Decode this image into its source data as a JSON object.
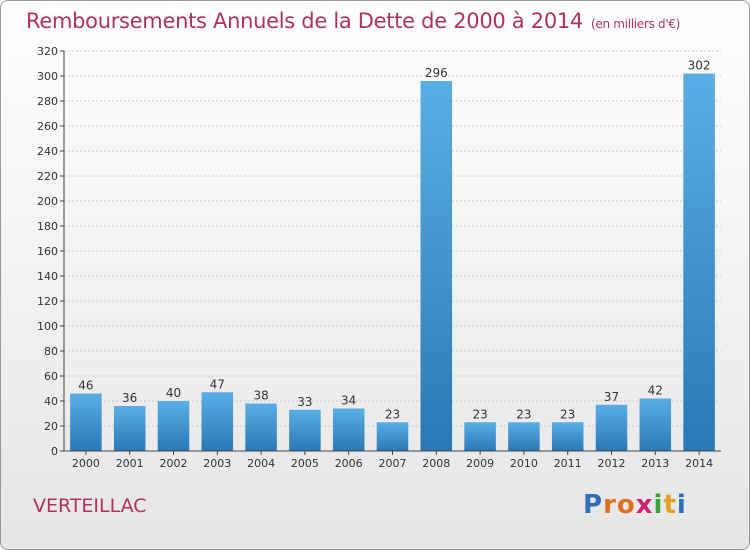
{
  "header": {
    "title": "Remboursements Annuels de la Dette de 2000 à 2014",
    "unit": "(en milliers d'€)"
  },
  "footer": {
    "commune": "VERTEILLAC",
    "logo_letters": [
      {
        "ch": "P",
        "color": "#2e6fb7"
      },
      {
        "ch": "r",
        "color": "#e07020"
      },
      {
        "ch": "o",
        "color": "#e07020"
      },
      {
        "ch": "x",
        "color": "#d02070"
      },
      {
        "ch": "i",
        "color": "#3aa33a"
      },
      {
        "ch": "t",
        "color": "#e0a020"
      },
      {
        "ch": "i",
        "color": "#2e6fb7"
      }
    ]
  },
  "chart_data": {
    "type": "bar",
    "categories": [
      "2000",
      "2001",
      "2002",
      "2003",
      "2004",
      "2005",
      "2006",
      "2007",
      "2008",
      "2009",
      "2010",
      "2011",
      "2012",
      "2013",
      "2014"
    ],
    "values": [
      46,
      36,
      40,
      47,
      38,
      33,
      34,
      23,
      296,
      23,
      23,
      23,
      37,
      42,
      302
    ],
    "ylim": [
      0,
      320
    ],
    "yticks": [
      0,
      20,
      40,
      60,
      80,
      100,
      120,
      140,
      160,
      180,
      200,
      220,
      240,
      260,
      280,
      300,
      320
    ],
    "grid": true,
    "bar_color_top": "#5aaee6",
    "bar_color_bottom": "#2a78b5"
  }
}
